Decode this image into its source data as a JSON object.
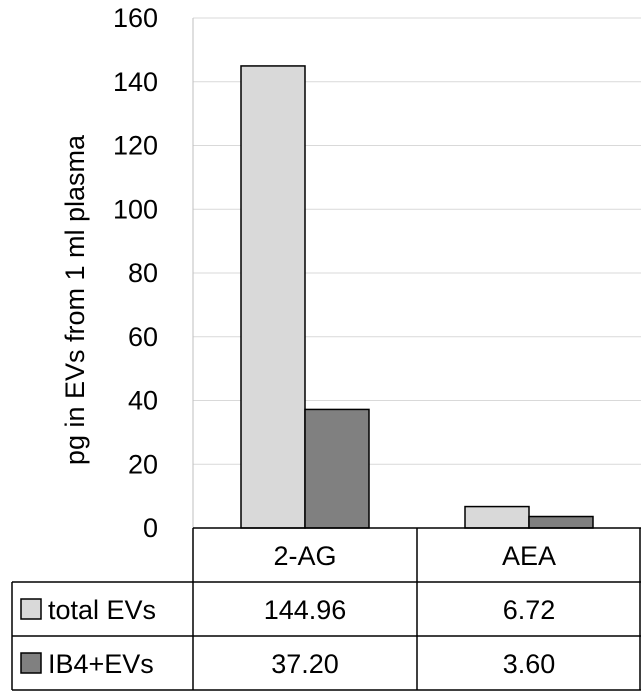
{
  "chart_data": {
    "type": "bar",
    "categories": [
      "2-AG",
      "AEA"
    ],
    "series": [
      {
        "name": "total EVs",
        "values": [
          144.96,
          6.72
        ],
        "labels": [
          "144.96",
          "6.72"
        ],
        "color": "#d9d9d9"
      },
      {
        "name": "IB4+EVs",
        "values": [
          37.2,
          3.6
        ],
        "labels": [
          "37.20",
          "3.60"
        ],
        "color": "#808080"
      }
    ],
    "ylabel": "pg in EVs from 1 ml plasma",
    "ylim": [
      0,
      160
    ],
    "yticks": [
      0,
      20,
      40,
      60,
      80,
      100,
      120,
      140,
      160
    ],
    "grid": true,
    "legend": "data-table"
  }
}
